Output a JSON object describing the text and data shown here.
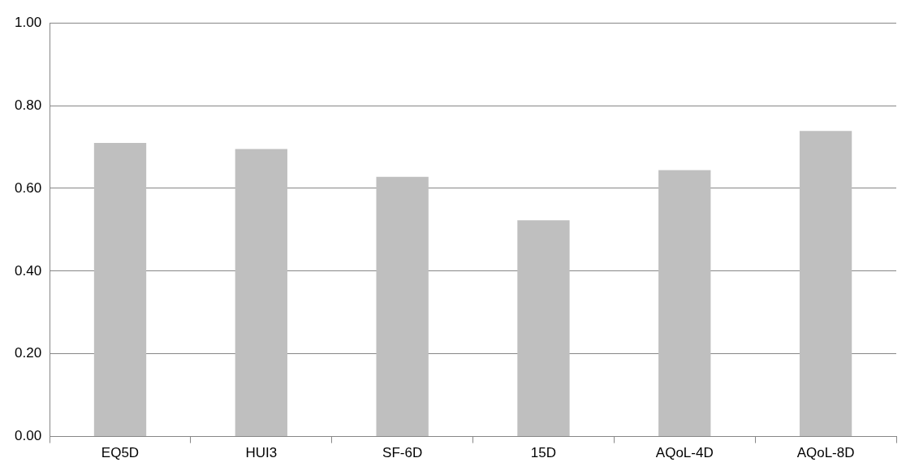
{
  "chart_data": {
    "type": "bar",
    "categories": [
      "EQ5D",
      "HUI3",
      "SF-6D",
      "15D",
      "AQoL-4D",
      "AQoL-8D"
    ],
    "values": [
      0.71,
      0.695,
      0.628,
      0.523,
      0.644,
      0.739
    ],
    "color": "#bfbfbf",
    "ylim": [
      0,
      1
    ],
    "yticks": [
      {
        "value": 0,
        "label": "0.00"
      },
      {
        "value": 0.2,
        "label": "0.20"
      },
      {
        "value": 0.4,
        "label": "0.40"
      },
      {
        "value": 0.6,
        "label": "0.60"
      },
      {
        "value": 0.8,
        "label": "0.80"
      },
      {
        "value": 1,
        "label": "1.00"
      }
    ],
    "grid": "y",
    "legend": false
  }
}
